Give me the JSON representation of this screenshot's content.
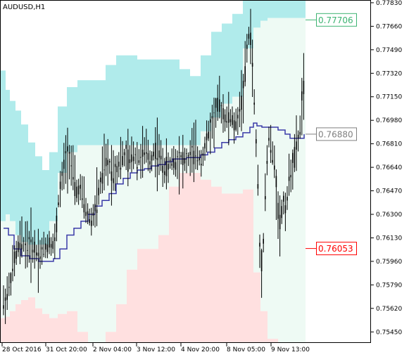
{
  "chart_data": {
    "type": "candlestick",
    "title": "AUDUSD,H1",
    "x_tick_labels": [
      "28 Oct 2016",
      "31 Oct 20:00",
      "2 Nov 04:00",
      "3 Nov 12:00",
      "4 Nov 20:00",
      "8 Nov 05:00",
      "9 Nov 13:00"
    ],
    "y_tick_labels": [
      "0.77830",
      "0.77660",
      "0.77490",
      "0.77320",
      "0.77150",
      "0.76980",
      "0.76810",
      "0.76640",
      "0.76470",
      "0.76300",
      "0.76130",
      "0.75960",
      "0.75790",
      "0.75620",
      "0.75450"
    ],
    "ylim": [
      0.7537,
      0.7785
    ],
    "levels": {
      "upper": {
        "value": "0.77706",
        "color": "#3cb371"
      },
      "middle": {
        "value": "0.76880",
        "color": "#808080"
      },
      "lower": {
        "value": "0.76053",
        "color": "#ff0000"
      }
    },
    "colors": {
      "upper_band": "#b0ebeb",
      "mid_band": "#eefaf4",
      "lower_band": "#ffe0e0",
      "moving_average": "#3a3aa8",
      "candles": "#000000"
    },
    "band_step_x": [
      0,
      8,
      14,
      22,
      30,
      40,
      50,
      60,
      70,
      82,
      95,
      110,
      125,
      140,
      150,
      165,
      180,
      195,
      210,
      225,
      240,
      255,
      270,
      285,
      300,
      315,
      330,
      345,
      360,
      370,
      380,
      395,
      410,
      420,
      434
    ],
    "band_upper": [
      0.7734,
      0.772,
      0.7712,
      0.7705,
      0.7695,
      0.7682,
      0.7672,
      0.7662,
      0.7675,
      0.7708,
      0.7722,
      0.7727,
      0.7727,
      0.7727,
      0.7738,
      0.7745,
      0.7745,
      0.7742,
      0.7742,
      0.7742,
      0.7742,
      0.7735,
      0.773,
      0.7745,
      0.7762,
      0.7768,
      0.7775,
      0.7788,
      0.7788,
      0.7788,
      0.7788,
      0.7788,
      0.7788,
      0.7788,
      0.7788
    ],
    "band_mid_top": [
      0.7625,
      0.763,
      0.7625,
      0.7615,
      0.761,
      0.7608,
      0.7608,
      0.7608,
      0.7625,
      0.766,
      0.7675,
      0.768,
      0.768,
      0.768,
      0.768,
      0.768,
      0.768,
      0.768,
      0.768,
      0.768,
      0.768,
      0.768,
      0.768,
      0.769,
      0.77,
      0.771,
      0.7715,
      0.775,
      0.7765,
      0.777,
      0.7772,
      0.7772,
      0.7772,
      0.7772,
      0.7772
    ],
    "band_mid_bottom": [
      0.7555,
      0.7556,
      0.756,
      0.7565,
      0.7568,
      0.757,
      0.7562,
      0.7558,
      0.7555,
      0.7558,
      0.756,
      0.7545,
      0.7535,
      0.7535,
      0.7545,
      0.7565,
      0.759,
      0.7605,
      0.7605,
      0.7615,
      0.765,
      0.766,
      0.766,
      0.7655,
      0.765,
      0.7645,
      0.7645,
      0.7648,
      0.7588,
      0.756,
      0.754,
      0.753,
      0.752,
      0.752,
      0.752
    ],
    "band_lower_bottom": [
      0.753,
      0.753,
      0.753,
      0.753,
      0.753,
      0.753,
      0.753,
      0.753,
      0.753,
      0.753,
      0.753,
      0.753,
      0.753,
      0.753,
      0.753,
      0.753,
      0.753,
      0.753,
      0.753,
      0.753,
      0.753,
      0.753,
      0.753,
      0.753,
      0.753,
      0.753,
      0.753,
      0.753,
      0.753,
      0.753,
      0.753,
      0.753,
      0.753,
      0.753,
      0.753
    ],
    "moving_average_x": [
      5,
      12,
      20,
      30,
      42,
      55,
      66,
      76,
      85,
      95,
      105,
      115,
      125,
      135,
      145,
      155,
      165,
      175,
      185,
      195,
      205,
      215,
      225,
      235,
      245,
      255,
      265,
      275,
      285,
      295,
      305,
      315,
      325,
      335,
      345,
      355,
      360,
      365,
      372,
      385,
      395,
      405,
      412,
      420,
      432
    ],
    "moving_average": [
      0.762,
      0.7615,
      0.7605,
      0.76,
      0.7598,
      0.7596,
      0.7596,
      0.7598,
      0.7605,
      0.7615,
      0.762,
      0.7625,
      0.763,
      0.7636,
      0.764,
      0.7645,
      0.7652,
      0.7656,
      0.766,
      0.7662,
      0.7663,
      0.7665,
      0.7666,
      0.7668,
      0.767,
      0.767,
      0.7671,
      0.7671,
      0.7673,
      0.7675,
      0.7678,
      0.7682,
      0.7684,
      0.7686,
      0.7689,
      0.7693,
      0.7696,
      0.7694,
      0.7693,
      0.7693,
      0.7691,
      0.7688,
      0.7685,
      0.7685,
      0.7688
    ],
    "candle_path": [
      [
        5,
        0.7565
      ],
      [
        12,
        0.7575
      ],
      [
        18,
        0.759
      ],
      [
        25,
        0.7605
      ],
      [
        32,
        0.761
      ],
      [
        40,
        0.7608
      ],
      [
        48,
        0.7606
      ],
      [
        55,
        0.76
      ],
      [
        62,
        0.7605
      ],
      [
        70,
        0.761
      ],
      [
        78,
        0.7608
      ],
      [
        83,
        0.764
      ],
      [
        88,
        0.7655
      ],
      [
        93,
        0.767
      ],
      [
        98,
        0.7675
      ],
      [
        103,
        0.766
      ],
      [
        108,
        0.7645
      ],
      [
        113,
        0.765
      ],
      [
        118,
        0.764
      ],
      [
        124,
        0.763
      ],
      [
        130,
        0.7625
      ],
      [
        136,
        0.7635
      ],
      [
        142,
        0.765
      ],
      [
        148,
        0.7665
      ],
      [
        154,
        0.7668
      ],
      [
        160,
        0.766
      ],
      [
        166,
        0.7665
      ],
      [
        172,
        0.767
      ],
      [
        178,
        0.7672
      ],
      [
        184,
        0.7668
      ],
      [
        190,
        0.7675
      ],
      [
        196,
        0.767
      ],
      [
        202,
        0.7672
      ],
      [
        208,
        0.7675
      ],
      [
        214,
        0.7668
      ],
      [
        220,
        0.7678
      ],
      [
        226,
        0.7672
      ],
      [
        232,
        0.7665
      ],
      [
        238,
        0.7662
      ],
      [
        244,
        0.767
      ],
      [
        250,
        0.7668
      ],
      [
        256,
        0.7672
      ],
      [
        262,
        0.7668
      ],
      [
        268,
        0.767
      ],
      [
        274,
        0.7675
      ],
      [
        280,
        0.7672
      ],
      [
        286,
        0.767
      ],
      [
        292,
        0.768
      ],
      [
        298,
        0.7692
      ],
      [
        304,
        0.77
      ],
      [
        310,
        0.771
      ],
      [
        316,
        0.7705
      ],
      [
        322,
        0.7698
      ],
      [
        328,
        0.77
      ],
      [
        334,
        0.7692
      ],
      [
        340,
        0.7705
      ],
      [
        346,
        0.772
      ],
      [
        351,
        0.775
      ],
      [
        355,
        0.7765
      ],
      [
        358,
        0.7745
      ],
      [
        362,
        0.77
      ],
      [
        366,
        0.766
      ],
      [
        370,
        0.7585
      ],
      [
        374,
        0.761
      ],
      [
        378,
        0.766
      ],
      [
        382,
        0.7685
      ],
      [
        386,
        0.7675
      ],
      [
        390,
        0.7665
      ],
      [
        394,
        0.764
      ],
      [
        398,
        0.762
      ],
      [
        402,
        0.764
      ],
      [
        406,
        0.7635
      ],
      [
        410,
        0.765
      ],
      [
        414,
        0.7665
      ],
      [
        418,
        0.767
      ],
      [
        422,
        0.768
      ],
      [
        426,
        0.769
      ],
      [
        430,
        0.772
      ],
      [
        434,
        0.7725
      ]
    ]
  }
}
